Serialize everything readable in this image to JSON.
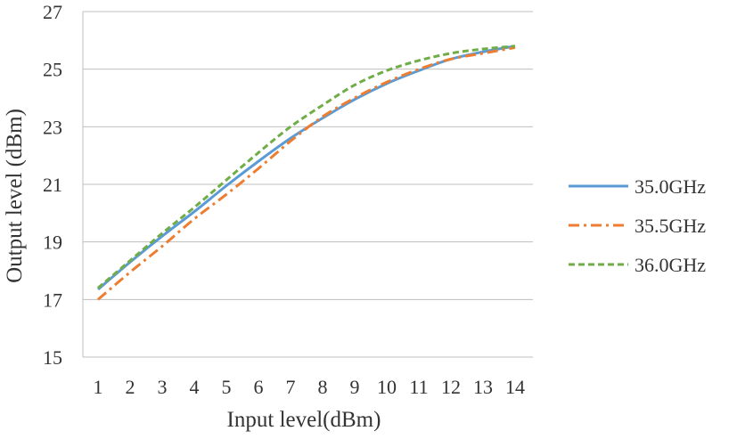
{
  "chart_data": {
    "type": "line",
    "title": "",
    "xlabel": "Input level(dBm)",
    "ylabel": "Output level (dBm)",
    "xlim": [
      1,
      14
    ],
    "ylim": [
      15,
      27
    ],
    "yticks": [
      15,
      17,
      19,
      21,
      23,
      25,
      27
    ],
    "x": [
      1,
      2,
      3,
      4,
      5,
      6,
      7,
      8,
      9,
      10,
      11,
      12,
      13,
      14
    ],
    "grid": true,
    "legend_position": "right",
    "series": [
      {
        "name": "35.0GHz",
        "color": "#5b9bd5",
        "dash": "solid",
        "values": [
          17.35,
          18.3,
          19.2,
          20.05,
          20.95,
          21.8,
          22.6,
          23.3,
          23.95,
          24.5,
          24.95,
          25.35,
          25.6,
          25.8
        ]
      },
      {
        "name": "35.5GHz",
        "color": "#ed7d31",
        "dash": "dashdot",
        "values": [
          17.0,
          17.95,
          18.85,
          19.8,
          20.65,
          21.55,
          22.5,
          23.35,
          24.0,
          24.55,
          25.0,
          25.35,
          25.55,
          25.75
        ]
      },
      {
        "name": "36.0GHz",
        "color": "#70ad47",
        "dash": "dash",
        "values": [
          17.4,
          18.35,
          19.3,
          20.2,
          21.15,
          22.1,
          23.0,
          23.75,
          24.45,
          24.95,
          25.3,
          25.55,
          25.7,
          25.8
        ]
      }
    ]
  }
}
